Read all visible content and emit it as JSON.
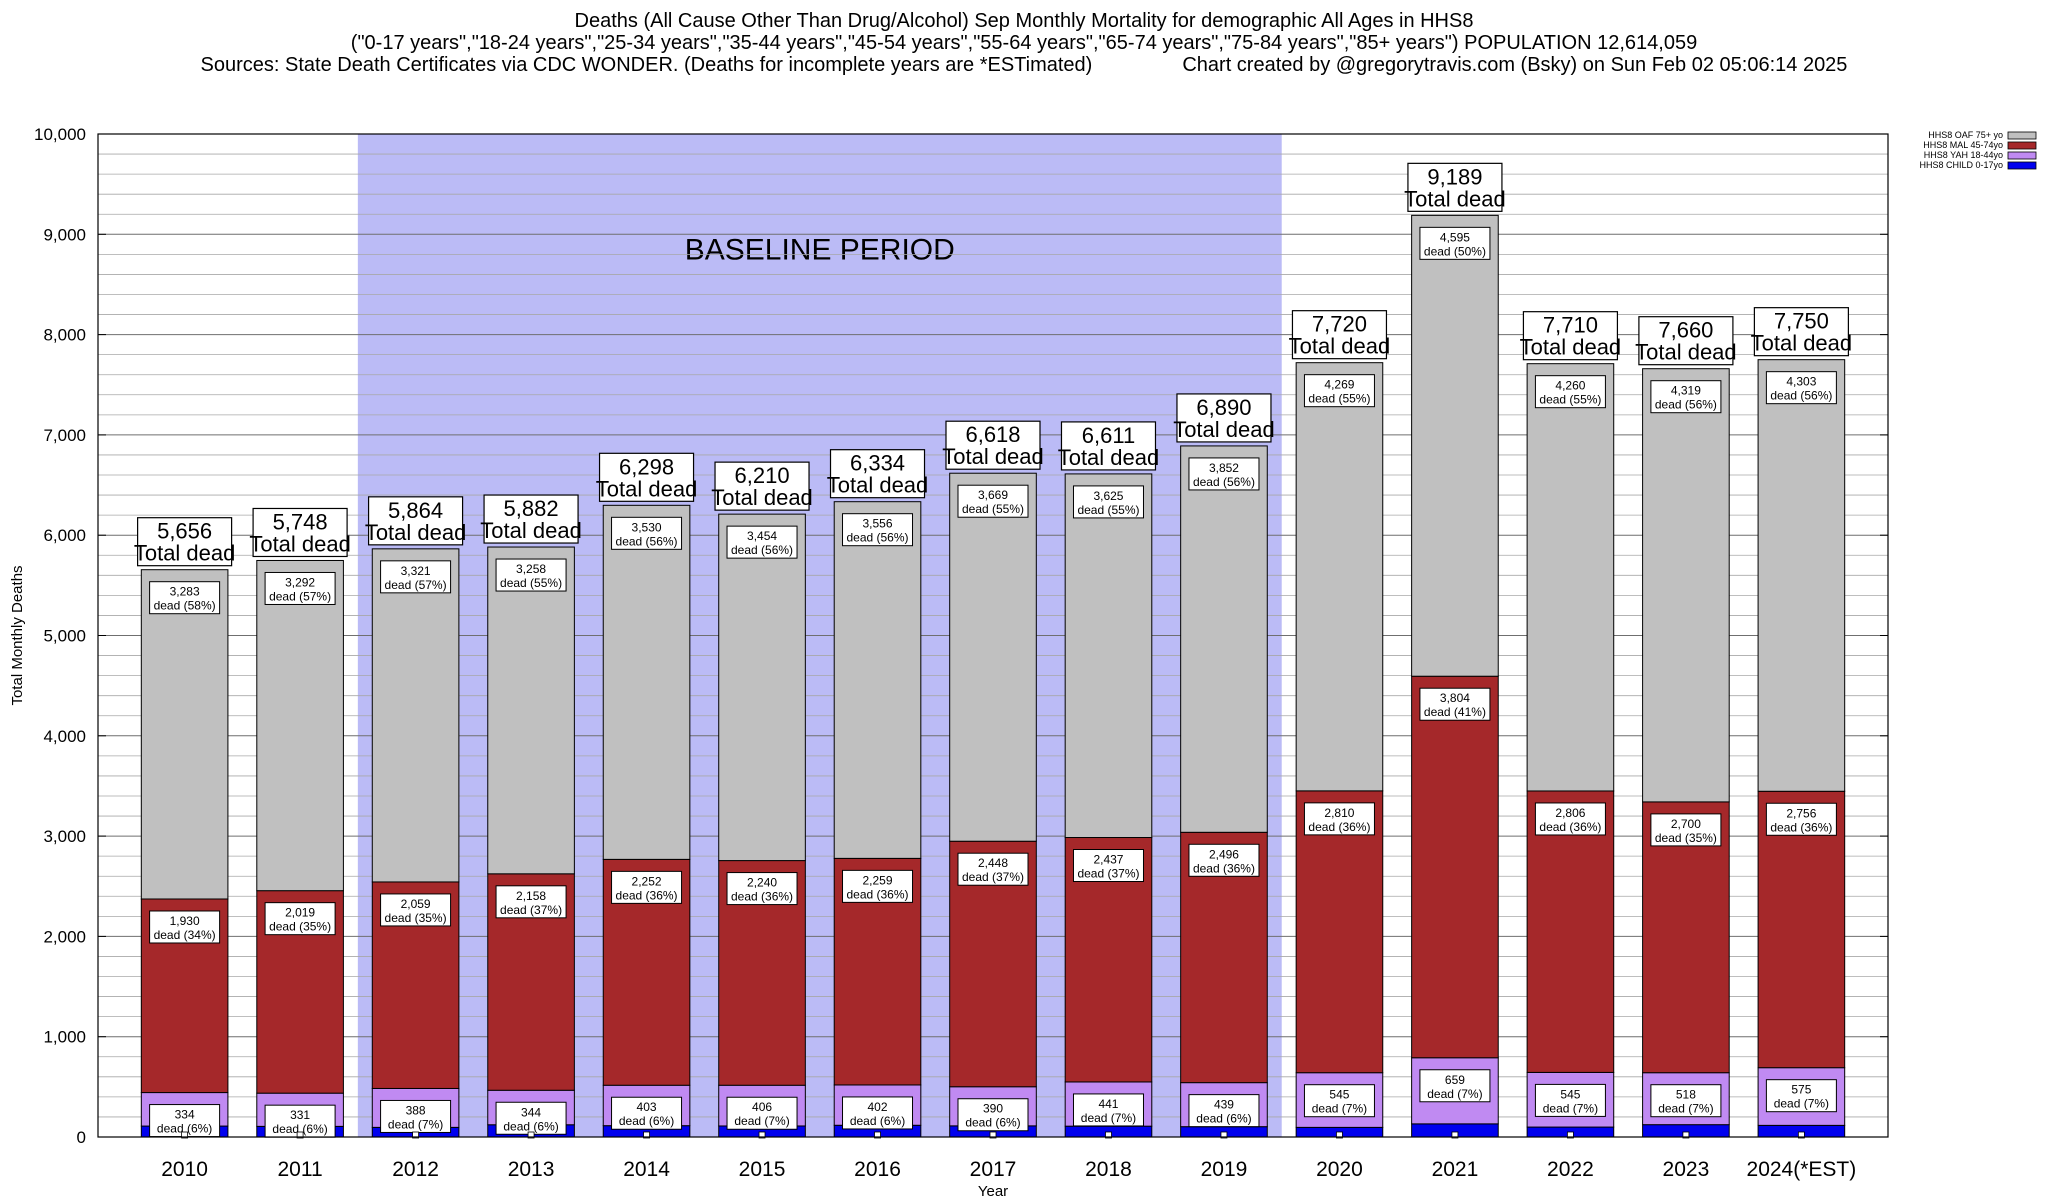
{
  "header": {
    "line1": "Deaths (All Cause Other Than Drug/Alcohol) Sep Monthly Mortality for demographic All Ages in HHS8",
    "line2": "(\"0-17 years\",\"18-24 years\",\"25-34 years\",\"35-44 years\",\"45-54 years\",\"55-64 years\",\"65-74 years\",\"75-84 years\",\"85+ years\") POPULATION 12,614,059",
    "line3_left": "Sources: State Death Certificates via CDC WONDER. (Deaths for incomplete years are *ESTimated)",
    "line3_right": "Chart created by @gregorytravis.com (Bsky) on Sun Feb 02 05:06:14 2025"
  },
  "chart_data": {
    "type": "bar",
    "stacked": true,
    "xlabel": "Year",
    "ylabel": "Total Monthly Deaths",
    "ylim": [
      0,
      10000
    ],
    "yticks": [
      0,
      1000,
      2000,
      3000,
      4000,
      5000,
      6000,
      7000,
      8000,
      9000,
      10000
    ],
    "ytick_labels": [
      "0",
      "1,000",
      "2,000",
      "3,000",
      "4,000",
      "5,000",
      "6,000",
      "7,000",
      "8,000",
      "9,000",
      "10,000"
    ],
    "minor_grid_step": 200,
    "grid": true,
    "legend_position": "top-right",
    "annotation": {
      "text": "BASELINE PERIOD",
      "from_category": "2012",
      "to_category": "2019",
      "color": "#bbbbf6"
    },
    "categories": [
      "2010",
      "2011",
      "2012",
      "2013",
      "2014",
      "2015",
      "2016",
      "2017",
      "2018",
      "2019",
      "2020",
      "2021",
      "2022",
      "2023",
      "2024(*EST)"
    ],
    "totals": [
      5656,
      5748,
      5864,
      5882,
      6298,
      6210,
      6334,
      6618,
      6611,
      6890,
      7720,
      9189,
      7710,
      7660,
      7750
    ],
    "total_labels": [
      "5,656",
      "5,748",
      "5,864",
      "5,882",
      "6,298",
      "6,210",
      "6,334",
      "6,618",
      "6,611",
      "6,890",
      "7,720",
      "9,189",
      "7,710",
      "7,660",
      "7,750"
    ],
    "total_suffix": "Total dead",
    "series": [
      {
        "name": "HHS8 CHILD 0-17yo",
        "color": "#0000ee",
        "values": [
          109,
          106,
          96,
          122,
          113,
          110,
          117,
          111,
          108,
          103,
          96,
          131,
          99,
          123,
          116
        ]
      },
      {
        "name": "HHS8 YAH 18-44yo",
        "color": "#c08af2",
        "values": [
          334,
          331,
          388,
          344,
          403,
          406,
          402,
          390,
          441,
          439,
          545,
          659,
          545,
          518,
          575
        ],
        "labels": [
          "334",
          "331",
          "388",
          "344",
          "403",
          "406",
          "402",
          "390",
          "441",
          "439",
          "545",
          "659",
          "545",
          "518",
          "575"
        ],
        "pcts": [
          "6%",
          "6%",
          "7%",
          "6%",
          "6%",
          "7%",
          "6%",
          "6%",
          "7%",
          "6%",
          "7%",
          "7%",
          "7%",
          "7%",
          "7%"
        ]
      },
      {
        "name": "HHS8 MAL 45-74yo",
        "color": "#a5282a",
        "values": [
          1930,
          2019,
          2059,
          2158,
          2252,
          2240,
          2259,
          2448,
          2437,
          2496,
          2810,
          3804,
          2806,
          2700,
          2756
        ],
        "labels": [
          "1,930",
          "2,019",
          "2,059",
          "2,158",
          "2,252",
          "2,240",
          "2,259",
          "2,448",
          "2,437",
          "2,496",
          "2,810",
          "3,804",
          "2,806",
          "2,700",
          "2,756"
        ],
        "pcts": [
          "34%",
          "35%",
          "35%",
          "37%",
          "36%",
          "36%",
          "36%",
          "37%",
          "37%",
          "36%",
          "36%",
          "41%",
          "36%",
          "35%",
          "36%"
        ]
      },
      {
        "name": "HHS8 OAF 75+ yo",
        "color": "#c0c0c0",
        "values": [
          3283,
          3292,
          3321,
          3258,
          3530,
          3454,
          3556,
          3669,
          3625,
          3852,
          4269,
          4595,
          4260,
          4319,
          4303
        ],
        "labels": [
          "3,283",
          "3,292",
          "3,321",
          "3,258",
          "3,530",
          "3,454",
          "3,556",
          "3,669",
          "3,625",
          "3,852",
          "4,269",
          "4,595",
          "4,260",
          "4,319",
          "4,303"
        ],
        "pcts": [
          "58%",
          "57%",
          "57%",
          "55%",
          "56%",
          "56%",
          "56%",
          "55%",
          "55%",
          "56%",
          "55%",
          "50%",
          "55%",
          "56%",
          "56%"
        ]
      }
    ],
    "segment_prefix": "dead",
    "legend_order": [
      "HHS8 OAF 75+ yo",
      "HHS8 MAL 45-74yo",
      "HHS8 YAH 18-44yo",
      "HHS8 CHILD 0-17yo"
    ]
  }
}
